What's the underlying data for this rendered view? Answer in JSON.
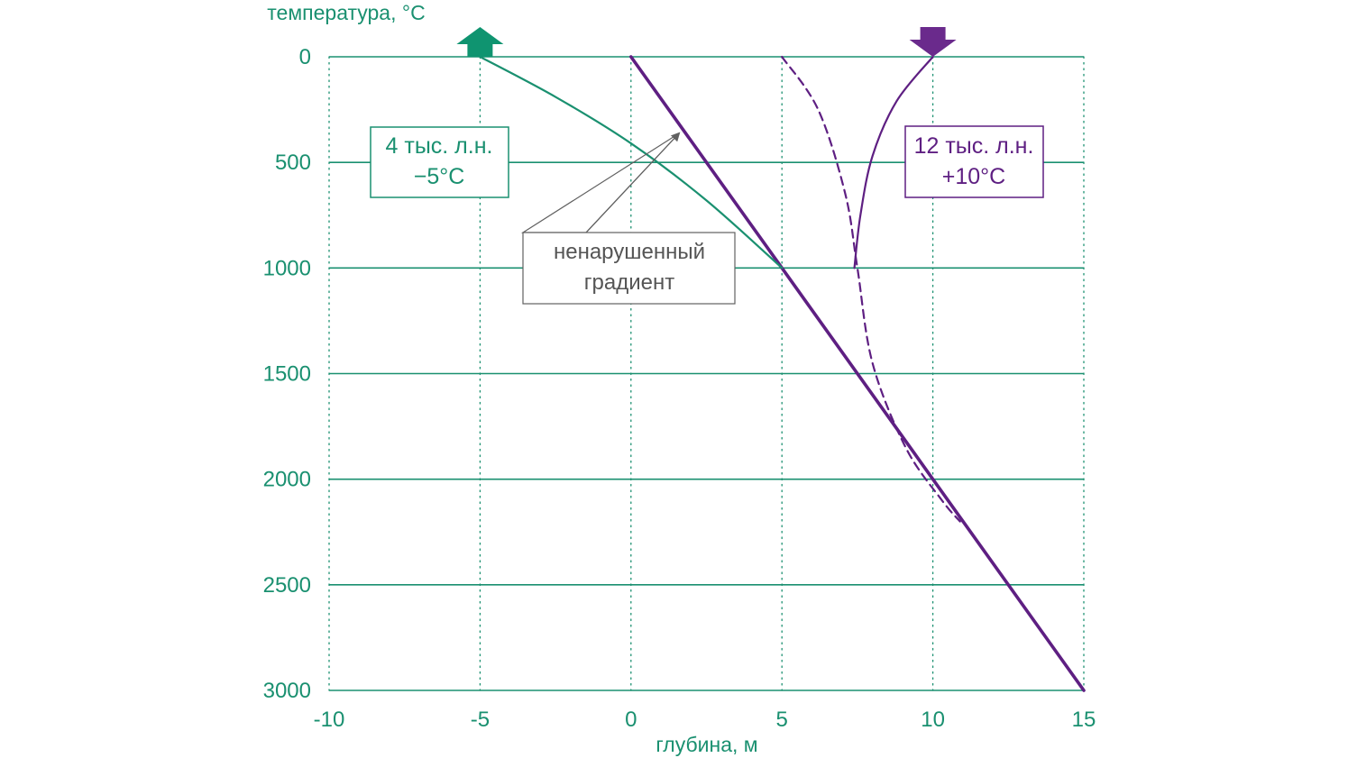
{
  "colors": {
    "green": "#1a9070",
    "purple": "#5e1f82",
    "gray": "#606060",
    "arrow_green": "#0f9470",
    "arrow_purple": "#6a2a8c"
  },
  "chart_data": {
    "type": "line",
    "xlabel": "глубина, м",
    "ylabel": "температура, °C",
    "xlim": [
      -10,
      15
    ],
    "ylim": [
      0,
      3000
    ],
    "x_ticks": [
      "-10",
      "-5",
      "0",
      "5",
      "10",
      "15"
    ],
    "y_ticks": [
      "0",
      "500",
      "1000",
      "1500",
      "2000",
      "2500",
      "3000"
    ],
    "grid": "horizontal solid lines at y ticks; vertical dotted lines at x ticks",
    "series": [
      {
        "style": "purple-thick",
        "points": [
          [
            0,
            0
          ],
          [
            5,
            1000
          ],
          [
            10,
            2000
          ],
          [
            15,
            3000
          ]
        ]
      },
      {
        "style": "green-curve",
        "points": [
          [
            -5,
            0
          ],
          [
            -2.5,
            190
          ],
          [
            0,
            410
          ],
          [
            2.5,
            680
          ],
          [
            5,
            1000
          ]
        ]
      },
      {
        "style": "purple-solid-curve",
        "points": [
          [
            10,
            0
          ],
          [
            8.8,
            210
          ],
          [
            8,
            470
          ],
          [
            7.6,
            750
          ],
          [
            7.4,
            1000
          ]
        ]
      },
      {
        "style": "purple-dashed-curve",
        "points": [
          [
            5,
            0
          ],
          [
            6.2,
            250
          ],
          [
            7.1,
            650
          ],
          [
            7.5,
            1000
          ],
          [
            8,
            1450
          ],
          [
            9.1,
            1850
          ],
          [
            10.3,
            2100
          ],
          [
            10.9,
            2200
          ]
        ]
      }
    ],
    "markers": [
      {
        "direction": "up",
        "x": -5,
        "y": 0,
        "color": "green"
      },
      {
        "direction": "down",
        "x": 10,
        "y": 0,
        "color": "purple"
      }
    ],
    "annotations": {
      "green_box": {
        "line1": "4 тыс. л.н.",
        "line2": "−5°C"
      },
      "purple_box": {
        "line1": "12 тыс. л.н.",
        "line2": "+10°C"
      },
      "gradient_note": {
        "line1": "ненарушенный",
        "line2": "градиент",
        "points_to": [
          1.6,
          340
        ]
      }
    }
  }
}
